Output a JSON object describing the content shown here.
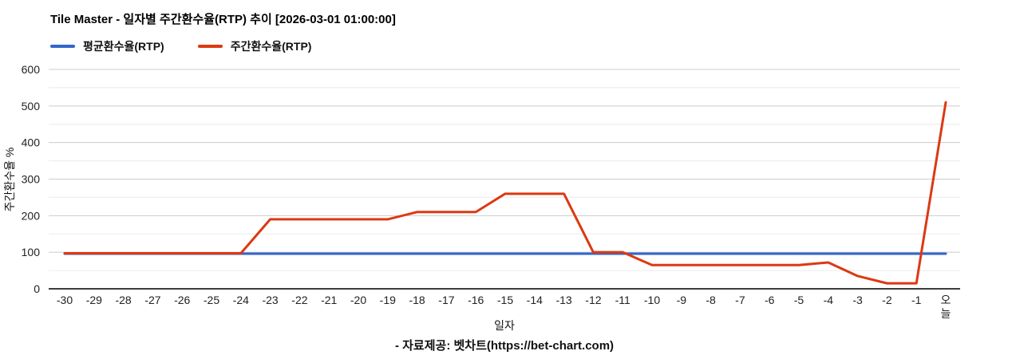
{
  "title": "Tile Master - 일자별 주간환수율(RTP) 추이 [2026-03-01 01:00:00]",
  "legend": [
    {
      "label": "평균환수율(RTP)",
      "color": "#3366cc"
    },
    {
      "label": "주간환수율(RTP)",
      "color": "#dc3912"
    }
  ],
  "footer": "- 자료제공: 벳차트(https://bet-chart.com)",
  "chart_data": {
    "type": "line",
    "title": "Tile Master - 일자별 주간환수율(RTP) 추이 [2026-03-01 01:00:00]",
    "xlabel": "일자",
    "ylabel": "주간환수율 %",
    "ylim": [
      0,
      600
    ],
    "ytick_step": 100,
    "minor_step": 50,
    "grid": true,
    "legend_position": "top-left",
    "categories": [
      "-30",
      "-29",
      "-28",
      "-27",
      "-26",
      "-25",
      "-24",
      "-23",
      "-22",
      "-21",
      "-20",
      "-19",
      "-18",
      "-17",
      "-16",
      "-15",
      "-14",
      "-13",
      "-12",
      "-11",
      "-10",
      "-9",
      "-8",
      "-7",
      "-6",
      "-5",
      "-4",
      "-3",
      "-2",
      "-1",
      "오늘"
    ],
    "series": [
      {
        "name": "평균환수율(RTP)",
        "color": "#3366cc",
        "values": [
          96,
          96,
          96,
          96,
          96,
          96,
          96,
          96,
          96,
          96,
          96,
          96,
          96,
          96,
          96,
          96,
          96,
          96,
          96,
          96,
          96,
          96,
          96,
          96,
          96,
          96,
          96,
          96,
          96,
          96,
          96
        ]
      },
      {
        "name": "주간환수율(RTP)",
        "color": "#dc3912",
        "values": [
          97,
          97,
          97,
          97,
          97,
          97,
          97,
          190,
          190,
          190,
          190,
          190,
          210,
          210,
          210,
          260,
          260,
          260,
          100,
          100,
          65,
          65,
          65,
          65,
          65,
          65,
          72,
          35,
          15,
          15,
          510
        ]
      }
    ]
  }
}
